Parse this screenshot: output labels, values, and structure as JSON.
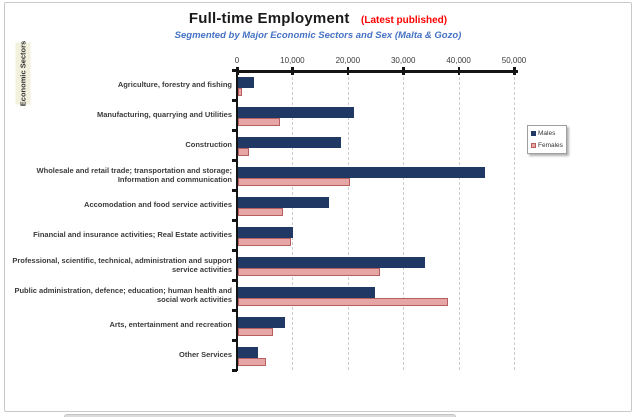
{
  "title": {
    "main": "Full-time Employment",
    "annotation": "(Latest published)"
  },
  "subtitle": "Segmented by Major Economic Sectors and Sex (Malta & Gozo)",
  "y_axis_title": "Economic Sectors",
  "colors": {
    "males": "#1f3864",
    "females_fill": "#e6a6a6",
    "females_border": "#b75f5f",
    "title_annotation": "#ff0000",
    "subtitle_text": "#4472c4",
    "axis_line": "#141414",
    "gridline": "#cccccc"
  },
  "legend": {
    "items": [
      {
        "label": "Males"
      },
      {
        "label": "Females"
      }
    ]
  },
  "chart_data": {
    "type": "bar",
    "orientation": "horizontal",
    "title": "Full-time Employment (Latest published)",
    "subtitle": "Segmented by Major Economic Sectors and Sex (Malta & Gozo)",
    "ylabel": "Economic Sectors",
    "xlim": [
      0,
      50000
    ],
    "x_ticks": [
      "0",
      "10,000",
      "20,000",
      "30,000",
      "40,000",
      "50,000"
    ],
    "x_tick_values": [
      0,
      10000,
      20000,
      30000,
      40000,
      50000
    ],
    "grid": "vertical-dashed",
    "legend_position": "right",
    "categories": [
      "Agriculture, forestry and fishing",
      "Manufacturing, quarrying and Utilities",
      "Construction",
      "Wholesale and retail trade; transportation and storage; Information and communication",
      "Accomodation and food service activities",
      "Financial and insurance activities; Real Estate activities",
      "Professional, scientific, technical, administration and support service activities",
      "Public administration, defence; education; human health and social work activities",
      "Arts, entertainment and recreation",
      "Other Services"
    ],
    "series": [
      {
        "name": "Males",
        "values": [
          2800,
          21000,
          18600,
          44500,
          16400,
          9900,
          33700,
          24800,
          8400,
          3700
        ]
      },
      {
        "name": "Females",
        "values": [
          700,
          7500,
          2000,
          20300,
          8200,
          9600,
          25700,
          37900,
          6400,
          5100
        ]
      }
    ]
  }
}
